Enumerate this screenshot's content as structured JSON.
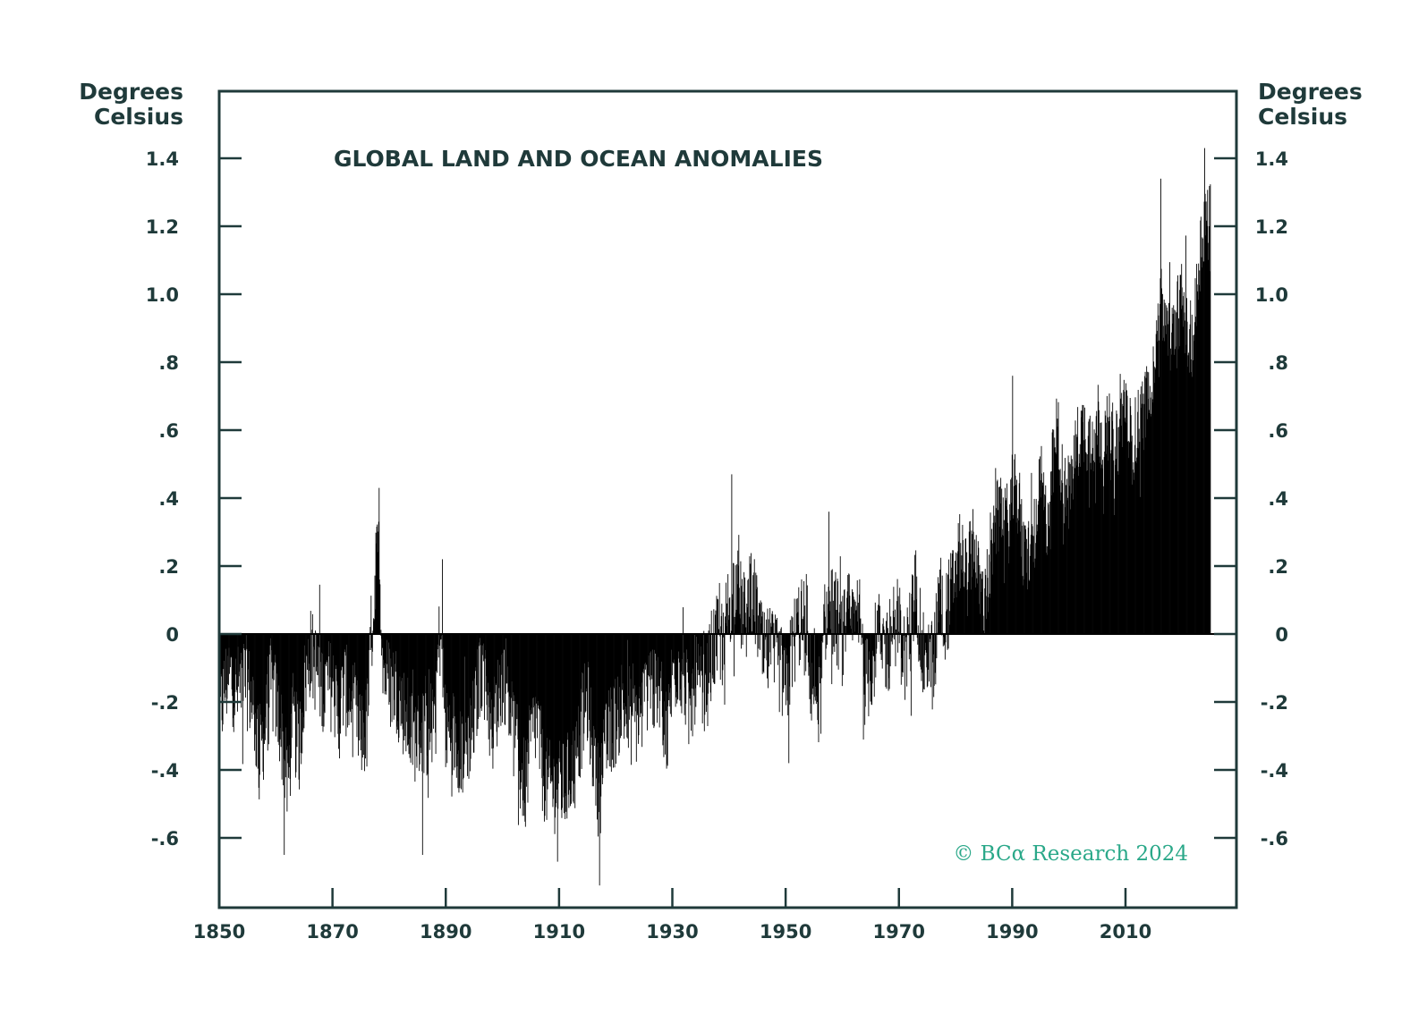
{
  "chart_data": {
    "type": "bar",
    "title": "GLOBAL LAND AND OCEAN ANOMALIES",
    "ylabel_left": [
      "Degrees",
      "Celsius"
    ],
    "ylabel_right": [
      "Degrees",
      "Celsius"
    ],
    "xlim": [
      1850,
      2027
    ],
    "ylim": [
      -0.8,
      1.6
    ],
    "x_ticks": [
      1850,
      1870,
      1890,
      1910,
      1930,
      1950,
      1970,
      1990,
      2010
    ],
    "y_ticks": [
      {
        "value": 1.4,
        "label": "1.4"
      },
      {
        "value": 1.2,
        "label": "1.2"
      },
      {
        "value": 1.0,
        "label": "1.0"
      },
      {
        "value": 0.8,
        "label": ".8"
      },
      {
        "value": 0.6,
        "label": ".6"
      },
      {
        "value": 0.4,
        "label": ".4"
      },
      {
        "value": 0.2,
        "label": ".2"
      },
      {
        "value": 0,
        "label": "0"
      },
      {
        "value": -0.2,
        "label": "-.2"
      },
      {
        "value": -0.4,
        "label": "-.4"
      },
      {
        "value": -0.6,
        "label": "-.6"
      }
    ],
    "grid": false,
    "color": "#000000",
    "frequency": "monthly",
    "yearly_center_anomalies": {
      "x": [
        1850,
        1851,
        1852,
        1853,
        1854,
        1855,
        1856,
        1857,
        1858,
        1859,
        1860,
        1861,
        1862,
        1863,
        1864,
        1865,
        1866,
        1867,
        1868,
        1869,
        1870,
        1871,
        1872,
        1873,
        1874,
        1875,
        1876,
        1877,
        1878,
        1879,
        1880,
        1881,
        1882,
        1883,
        1884,
        1885,
        1886,
        1887,
        1888,
        1889,
        1890,
        1891,
        1892,
        1893,
        1894,
        1895,
        1896,
        1897,
        1898,
        1899,
        1900,
        1901,
        1902,
        1903,
        1904,
        1905,
        1906,
        1907,
        1908,
        1909,
        1910,
        1911,
        1912,
        1913,
        1914,
        1915,
        1916,
        1917,
        1918,
        1919,
        1920,
        1921,
        1922,
        1923,
        1924,
        1925,
        1926,
        1927,
        1928,
        1929,
        1930,
        1931,
        1932,
        1933,
        1934,
        1935,
        1936,
        1937,
        1938,
        1939,
        1940,
        1941,
        1942,
        1943,
        1944,
        1945,
        1946,
        1947,
        1948,
        1949,
        1950,
        1951,
        1952,
        1953,
        1954,
        1955,
        1956,
        1957,
        1958,
        1959,
        1960,
        1961,
        1962,
        1963,
        1964,
        1965,
        1966,
        1967,
        1968,
        1969,
        1970,
        1971,
        1972,
        1973,
        1974,
        1975,
        1976,
        1977,
        1978,
        1979,
        1980,
        1981,
        1982,
        1983,
        1984,
        1985,
        1986,
        1987,
        1988,
        1989,
        1990,
        1991,
        1992,
        1993,
        1994,
        1995,
        1996,
        1997,
        1998,
        1999,
        2000,
        2001,
        2002,
        2003,
        2004,
        2005,
        2006,
        2007,
        2008,
        2009,
        2010,
        2011,
        2012,
        2013,
        2014,
        2015,
        2016,
        2017,
        2018,
        2019,
        2020,
        2021,
        2022,
        2023,
        2024
      ],
      "values": [
        -0.25,
        -0.15,
        -0.12,
        -0.18,
        -0.12,
        -0.15,
        -0.22,
        -0.35,
        -0.28,
        -0.15,
        -0.2,
        -0.3,
        -0.45,
        -0.25,
        -0.35,
        -0.15,
        -0.05,
        -0.1,
        -0.15,
        -0.15,
        -0.15,
        -0.25,
        -0.15,
        -0.2,
        -0.25,
        -0.3,
        -0.28,
        0.05,
        0.25,
        -0.1,
        -0.15,
        -0.15,
        -0.2,
        -0.25,
        -0.3,
        -0.3,
        -0.28,
        -0.3,
        -0.2,
        0.02,
        -0.3,
        -0.28,
        -0.32,
        -0.35,
        -0.3,
        -0.25,
        -0.1,
        -0.12,
        -0.3,
        -0.2,
        -0.12,
        -0.15,
        -0.3,
        -0.4,
        -0.45,
        -0.3,
        -0.25,
        -0.4,
        -0.45,
        -0.45,
        -0.45,
        -0.45,
        -0.4,
        -0.38,
        -0.25,
        -0.2,
        -0.35,
        -0.48,
        -0.35,
        -0.28,
        -0.25,
        -0.2,
        -0.25,
        -0.25,
        -0.25,
        -0.2,
        -0.1,
        -0.2,
        -0.18,
        -0.3,
        -0.12,
        -0.08,
        -0.12,
        -0.25,
        -0.12,
        -0.18,
        -0.15,
        -0.05,
        -0.02,
        -0.02,
        0.1,
        0.15,
        0.08,
        0.06,
        0.12,
        0.05,
        -0.08,
        -0.05,
        -0.08,
        -0.1,
        -0.18,
        -0.05,
        0.02,
        0.05,
        -0.12,
        -0.15,
        -0.2,
        0.05,
        0.08,
        0.04,
        -0.02,
        0.05,
        0.02,
        0.05,
        -0.15,
        -0.1,
        -0.02,
        -0.02,
        -0.05,
        0.05,
        0.02,
        -0.08,
        0.02,
        0.15,
        -0.08,
        -0.05,
        -0.1,
        0.12,
        0.06,
        0.1,
        0.2,
        0.25,
        0.15,
        0.3,
        0.15,
        0.1,
        0.18,
        0.32,
        0.38,
        0.28,
        0.42,
        0.4,
        0.22,
        0.25,
        0.3,
        0.45,
        0.32,
        0.48,
        0.62,
        0.4,
        0.42,
        0.52,
        0.6,
        0.6,
        0.55,
        0.65,
        0.55,
        0.6,
        0.5,
        0.62,
        0.7,
        0.55,
        0.6,
        0.65,
        0.7,
        0.82,
        0.98,
        0.92,
        0.85,
        0.95,
        0.98,
        0.85,
        0.88,
        1.12,
        1.22
      ]
    },
    "notable_monthly_peaks": [
      {
        "x": 1861.4,
        "y": -0.65
      },
      {
        "x": 1878.2,
        "y": 0.43
      },
      {
        "x": 1885.8,
        "y": -0.65
      },
      {
        "x": 1889.3,
        "y": 0.22
      },
      {
        "x": 1909.7,
        "y": -0.67
      },
      {
        "x": 1917.1,
        "y": -0.74
      },
      {
        "x": 1940.4,
        "y": 0.47
      },
      {
        "x": 1950.5,
        "y": -0.38
      },
      {
        "x": 1957.6,
        "y": 0.36
      },
      {
        "x": 1990.0,
        "y": 0.76
      },
      {
        "x": 2016.2,
        "y": 1.34
      },
      {
        "x": 2023.9,
        "y": 1.43
      }
    ],
    "annotations": [
      "© BCα Research 2024"
    ]
  }
}
